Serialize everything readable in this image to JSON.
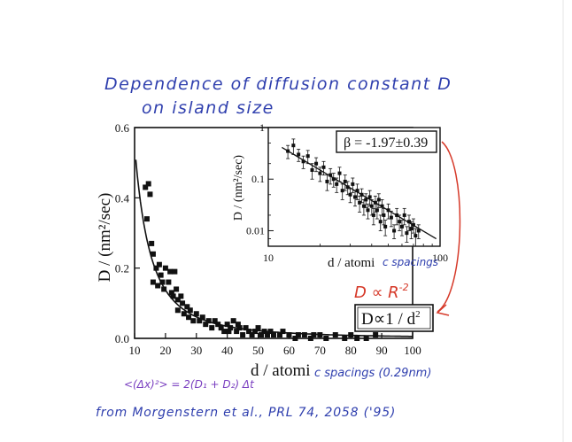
{
  "notes": {
    "title_line1": "Dependence of diffusion constant D",
    "title_line2": "on island size",
    "prop_handwritten": "D ∝ R",
    "prop_handwritten_exp": "-2",
    "axis_handwritten": "c spacings (0.29nm)",
    "inset_axis_handwritten": "c spacings",
    "formula": "<(Δx)²> = 2(D₁ + D₂) Δt",
    "source": "from Morgenstern et al., PRL 74, 2058 ('95)"
  },
  "colors": {
    "ink_blue": "#2f3fae",
    "ink_red": "#d63a2a",
    "ink_purple": "#7a3fc0",
    "plot_black": "#111111"
  },
  "chart_data": [
    {
      "type": "scatter",
      "title": "",
      "xlabel": "d / atomi",
      "ylabel": "D / (nm²/sec)",
      "xlim": [
        10,
        100
      ],
      "ylim": [
        0,
        0.6
      ],
      "x_ticks": [
        10,
        20,
        30,
        40,
        50,
        60,
        70,
        80,
        90,
        100
      ],
      "x_tick_labels": [
        "10",
        "20",
        "30",
        "40",
        "50",
        "60",
        "70",
        "80",
        "90",
        "100"
      ],
      "y_ticks": [
        0,
        0.2,
        0.4,
        0.6
      ],
      "y_tick_labels": [
        "0.0",
        "0.2",
        "0.4",
        "0.6"
      ],
      "grid": false,
      "annotation": "D∝1 / d",
      "annotation_exp": "2",
      "fit": {
        "model": "D = A / d^2",
        "A": 55
      },
      "series": [
        {
          "x": [
            13.5,
            14,
            14.5,
            15,
            15.5,
            16,
            16,
            17,
            17.5,
            18,
            18.5,
            19,
            19.5,
            20,
            21,
            21.5,
            22,
            22.5,
            23,
            23.5,
            24,
            24,
            25,
            25.5,
            26,
            27,
            27.5,
            28,
            29,
            30,
            31,
            32,
            33,
            34,
            35,
            36,
            37,
            38,
            39,
            40,
            40.5,
            41,
            42,
            43,
            43.5,
            44,
            45,
            46,
            47,
            48,
            49,
            50,
            51,
            52,
            53,
            54,
            55,
            57,
            58,
            60,
            62,
            63,
            65,
            67,
            68,
            70,
            72,
            75,
            78,
            80,
            82,
            85,
            88
          ],
          "y": [
            0.43,
            0.34,
            0.44,
            0.41,
            0.27,
            0.16,
            0.24,
            0.2,
            0.15,
            0.21,
            0.18,
            0.16,
            0.14,
            0.2,
            0.16,
            0.19,
            0.13,
            0.12,
            0.19,
            0.14,
            0.11,
            0.08,
            0.12,
            0.1,
            0.07,
            0.09,
            0.06,
            0.08,
            0.05,
            0.07,
            0.05,
            0.06,
            0.04,
            0.05,
            0.03,
            0.05,
            0.04,
            0.03,
            0.02,
            0.04,
            0.02,
            0.03,
            0.05,
            0.02,
            0.04,
            0.03,
            0.01,
            0.03,
            0.02,
            0.01,
            0.02,
            0.03,
            0.01,
            0.02,
            0.01,
            0.02,
            0.01,
            0.01,
            0.02,
            0.01,
            0.0,
            0.01,
            0.01,
            0.0,
            0.01,
            0.01,
            0.0,
            0.01,
            0.0,
            0.01,
            0.0,
            0.0,
            0.01
          ]
        }
      ]
    },
    {
      "type": "scatter",
      "title": "",
      "xlabel": "d / atomi",
      "ylabel": "D / (nm²/sec)",
      "x_scale": "log",
      "y_scale": "log",
      "xlim": [
        10,
        100
      ],
      "ylim": [
        0.005,
        1
      ],
      "x_ticks": [
        10,
        100
      ],
      "x_tick_labels": [
        "10",
        "100"
      ],
      "y_ticks": [
        1,
        0.1,
        0.01
      ],
      "y_tick_labels": [
        "1",
        "0.1",
        "0.01"
      ],
      "grid": false,
      "annotation": "β = -1.97±0.39",
      "fit": {
        "model": "D = A * d^beta",
        "A": 55,
        "beta": -1.97
      },
      "series": [
        {
          "x": [
            13,
            14,
            15,
            16,
            17,
            18,
            19,
            20,
            21,
            22,
            23,
            24,
            25,
            26,
            27,
            28,
            29,
            30,
            31,
            32,
            33,
            34,
            35,
            36,
            37,
            38,
            39,
            40,
            41,
            42,
            43,
            44,
            45,
            46,
            47,
            48,
            50,
            52,
            54,
            56,
            58,
            60,
            62,
            64,
            66,
            68,
            70,
            72,
            75
          ],
          "y": [
            0.35,
            0.45,
            0.3,
            0.22,
            0.28,
            0.15,
            0.2,
            0.13,
            0.17,
            0.09,
            0.12,
            0.1,
            0.08,
            0.13,
            0.06,
            0.09,
            0.07,
            0.05,
            0.08,
            0.045,
            0.06,
            0.035,
            0.05,
            0.03,
            0.04,
            0.025,
            0.045,
            0.03,
            0.02,
            0.035,
            0.025,
            0.04,
            0.015,
            0.03,
            0.02,
            0.012,
            0.025,
            0.018,
            0.01,
            0.02,
            0.015,
            0.012,
            0.02,
            0.009,
            0.015,
            0.011,
            0.013,
            0.008,
            0.01
          ],
          "error_y": [
            0.1,
            0.15,
            0.08,
            0.06,
            0.08,
            0.05,
            0.06,
            0.04,
            0.05,
            0.03,
            0.04,
            0.03,
            0.025,
            0.04,
            0.02,
            0.03,
            0.02,
            0.015,
            0.025,
            0.015,
            0.02,
            0.012,
            0.015,
            0.01,
            0.012,
            0.008,
            0.015,
            0.01,
            0.007,
            0.012,
            0.008,
            0.012,
            0.005,
            0.01,
            0.007,
            0.004,
            0.008,
            0.006,
            0.003,
            0.007,
            0.005,
            0.004,
            0.007,
            0.003,
            0.005,
            0.004,
            0.004,
            0.003,
            0.003
          ]
        }
      ]
    }
  ]
}
